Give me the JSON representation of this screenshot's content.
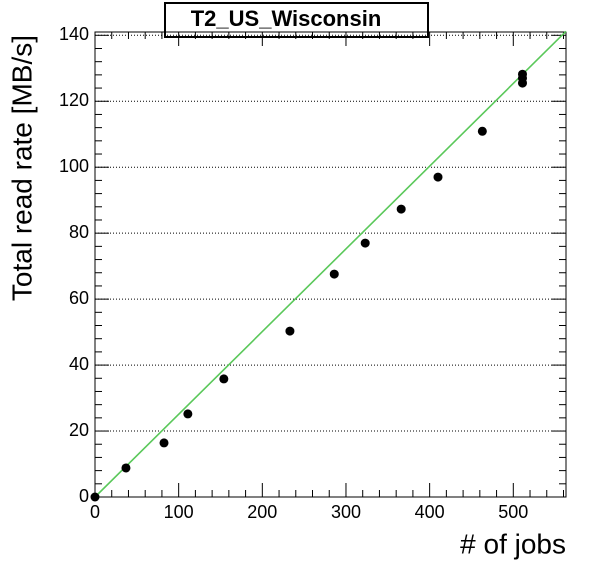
{
  "chart_data": {
    "type": "scatter",
    "title": "T2_US_Wisconsin",
    "xlabel": "# of jobs",
    "ylabel": "Total read rate [MB/s]",
    "x": [
      0,
      37,
      82.5,
      111,
      154,
      233,
      286,
      323,
      366,
      410,
      463,
      511,
      511,
      511
    ],
    "values": [
      0,
      8.8,
      16.4,
      25.2,
      35.8,
      50.3,
      67.6,
      77,
      87.3,
      97,
      110.9,
      128.2,
      127,
      125.5
    ],
    "color": "#000000",
    "fit": {
      "color": "#5ac85a",
      "x": [
        0,
        563
      ],
      "values": [
        0,
        141.2
      ]
    },
    "xlim": [
      0,
      563
    ],
    "ylim": [
      0,
      141
    ],
    "xticks": [
      0,
      100,
      200,
      300,
      400,
      500
    ],
    "yticks": [
      0,
      20,
      40,
      60,
      80,
      100,
      120,
      140
    ],
    "ygrid": true
  }
}
